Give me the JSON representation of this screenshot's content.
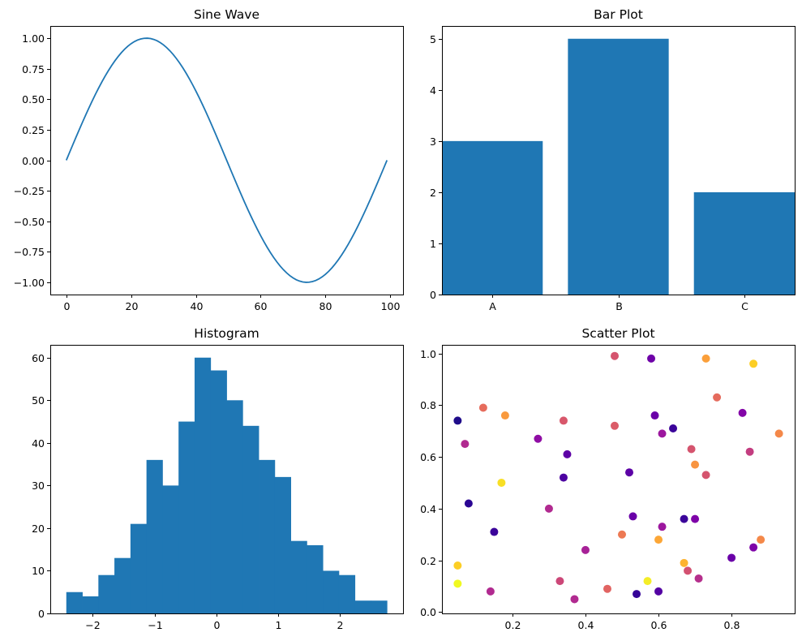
{
  "colors": {
    "accent": "#1f77b4",
    "axis": "#000000",
    "background": "#ffffff"
  },
  "chart_data": [
    {
      "id": "sine",
      "type": "line",
      "title": "Sine Wave",
      "xlabel": "",
      "ylabel": "",
      "x_range": [
        0,
        99
      ],
      "formula": "y = sin(2*pi*x/99), 100 samples",
      "xlim": [
        -4.95,
        103.95
      ],
      "ylim": [
        -1.1,
        1.1
      ],
      "xticks": [
        0,
        20,
        40,
        60,
        80,
        100
      ],
      "xtick_labels": [
        "0",
        "20",
        "40",
        "60",
        "80",
        "100"
      ],
      "yticks": [
        -1.0,
        -0.75,
        -0.5,
        -0.25,
        0.0,
        0.25,
        0.5,
        0.75,
        1.0
      ],
      "ytick_labels": [
        "−1.00",
        "−0.75",
        "−0.50",
        "−0.25",
        "0.00",
        "0.25",
        "0.50",
        "0.75",
        "1.00"
      ],
      "color": "#1f77b4"
    },
    {
      "id": "bar",
      "type": "bar",
      "title": "Bar Plot",
      "xlabel": "",
      "ylabel": "",
      "categories": [
        "A",
        "B",
        "C"
      ],
      "values": [
        3,
        5,
        2
      ],
      "xlim": [
        -0.4,
        2.4
      ],
      "ylim": [
        0,
        5.25
      ],
      "yticks": [
        0,
        1,
        2,
        3,
        4,
        5
      ],
      "ytick_labels": [
        "0",
        "1",
        "2",
        "3",
        "4",
        "5"
      ],
      "color": "#1f77b4"
    },
    {
      "id": "hist",
      "type": "bar",
      "subtype": "histogram",
      "title": "Histogram",
      "xlabel": "",
      "ylabel": "",
      "bin_edges": [
        -2.43,
        -2.17,
        -1.91,
        -1.65,
        -1.39,
        -1.13,
        -0.87,
        -0.61,
        -0.35,
        -0.09,
        0.17,
        0.43,
        0.69,
        0.95,
        1.21,
        1.47,
        1.73,
        1.99,
        2.25,
        2.51,
        2.77
      ],
      "counts": [
        5,
        4,
        9,
        13,
        21,
        36,
        30,
        45,
        60,
        57,
        50,
        44,
        36,
        32,
        17,
        16,
        10,
        9,
        3,
        3
      ],
      "xlim": [
        -2.69,
        3.03
      ],
      "ylim": [
        0,
        63
      ],
      "xticks": [
        -2,
        -1,
        0,
        1,
        2
      ],
      "xtick_labels": [
        "−2",
        "−1",
        "0",
        "1",
        "2"
      ],
      "yticks": [
        0,
        10,
        20,
        30,
        40,
        50,
        60
      ],
      "ytick_labels": [
        "0",
        "10",
        "20",
        "30",
        "40",
        "50",
        "60"
      ],
      "color": "#1f77b4"
    },
    {
      "id": "scatter",
      "type": "scatter",
      "title": "Scatter Plot",
      "xlabel": "",
      "ylabel": "",
      "xlim": [
        0.007,
        0.973
      ],
      "ylim": [
        -0.005,
        1.033
      ],
      "xticks": [
        0.2,
        0.4,
        0.6,
        0.8
      ],
      "xtick_labels": [
        "0.2",
        "0.4",
        "0.6",
        "0.8"
      ],
      "yticks": [
        0.0,
        0.2,
        0.4,
        0.6,
        0.8,
        1.0
      ],
      "ytick_labels": [
        "0.0",
        "0.2",
        "0.4",
        "0.6",
        "0.8",
        "1.0"
      ],
      "points": [
        {
          "x": 0.05,
          "y": 0.74,
          "c": "#1f0c8a"
        },
        {
          "x": 0.07,
          "y": 0.65,
          "c": "#b12a90"
        },
        {
          "x": 0.08,
          "y": 0.42,
          "c": "#2a0593"
        },
        {
          "x": 0.05,
          "y": 0.18,
          "c": "#fcce25"
        },
        {
          "x": 0.05,
          "y": 0.11,
          "c": "#f0f921"
        },
        {
          "x": 0.12,
          "y": 0.79,
          "c": "#e66c5c"
        },
        {
          "x": 0.15,
          "y": 0.31,
          "c": "#3b049a"
        },
        {
          "x": 0.14,
          "y": 0.08,
          "c": "#b12a90"
        },
        {
          "x": 0.17,
          "y": 0.5,
          "c": "#f8df25"
        },
        {
          "x": 0.18,
          "y": 0.76,
          "c": "#f99a3e"
        },
        {
          "x": 0.27,
          "y": 0.67,
          "c": "#8f0da4"
        },
        {
          "x": 0.3,
          "y": 0.4,
          "c": "#b12a90"
        },
        {
          "x": 0.33,
          "y": 0.12,
          "c": "#cc4778"
        },
        {
          "x": 0.34,
          "y": 0.74,
          "c": "#d8576b"
        },
        {
          "x": 0.34,
          "y": 0.52,
          "c": "#4c02a1"
        },
        {
          "x": 0.35,
          "y": 0.61,
          "c": "#5d01a6"
        },
        {
          "x": 0.37,
          "y": 0.05,
          "c": "#b12a90"
        },
        {
          "x": 0.4,
          "y": 0.24,
          "c": "#a72197"
        },
        {
          "x": 0.46,
          "y": 0.09,
          "c": "#e16462"
        },
        {
          "x": 0.48,
          "y": 0.99,
          "c": "#d5546e"
        },
        {
          "x": 0.48,
          "y": 0.72,
          "c": "#db5c68"
        },
        {
          "x": 0.5,
          "y": 0.3,
          "c": "#ed7953"
        },
        {
          "x": 0.52,
          "y": 0.54,
          "c": "#5c01a6"
        },
        {
          "x": 0.53,
          "y": 0.37,
          "c": "#6a00a8"
        },
        {
          "x": 0.54,
          "y": 0.07,
          "c": "#350498"
        },
        {
          "x": 0.57,
          "y": 0.12,
          "c": "#f4ed27"
        },
        {
          "x": 0.58,
          "y": 0.98,
          "c": "#6e00a8"
        },
        {
          "x": 0.59,
          "y": 0.76,
          "c": "#6a00a8"
        },
        {
          "x": 0.6,
          "y": 0.28,
          "c": "#fca636"
        },
        {
          "x": 0.6,
          "y": 0.08,
          "c": "#5302a3"
        },
        {
          "x": 0.61,
          "y": 0.69,
          "c": "#9c179e"
        },
        {
          "x": 0.61,
          "y": 0.33,
          "c": "#9c179e"
        },
        {
          "x": 0.64,
          "y": 0.71,
          "c": "#3b049a"
        },
        {
          "x": 0.67,
          "y": 0.36,
          "c": "#3b049a"
        },
        {
          "x": 0.67,
          "y": 0.19,
          "c": "#fdb32f"
        },
        {
          "x": 0.69,
          "y": 0.63,
          "c": "#d5546e"
        },
        {
          "x": 0.68,
          "y": 0.16,
          "c": "#d35171"
        },
        {
          "x": 0.7,
          "y": 0.36,
          "c": "#7e03a8"
        },
        {
          "x": 0.7,
          "y": 0.57,
          "c": "#f89441"
        },
        {
          "x": 0.71,
          "y": 0.13,
          "c": "#b52f8c"
        },
        {
          "x": 0.73,
          "y": 0.98,
          "c": "#fb9f3a"
        },
        {
          "x": 0.73,
          "y": 0.53,
          "c": "#d5546e"
        },
        {
          "x": 0.76,
          "y": 0.83,
          "c": "#e56b5d"
        },
        {
          "x": 0.8,
          "y": 0.21,
          "c": "#6a00a8"
        },
        {
          "x": 0.83,
          "y": 0.77,
          "c": "#8305a7"
        },
        {
          "x": 0.85,
          "y": 0.62,
          "c": "#c33d80"
        },
        {
          "x": 0.86,
          "y": 0.96,
          "c": "#fcce25"
        },
        {
          "x": 0.86,
          "y": 0.25,
          "c": "#7e03a8"
        },
        {
          "x": 0.88,
          "y": 0.28,
          "c": "#f48849"
        },
        {
          "x": 0.93,
          "y": 0.69,
          "c": "#f48849"
        }
      ]
    }
  ]
}
